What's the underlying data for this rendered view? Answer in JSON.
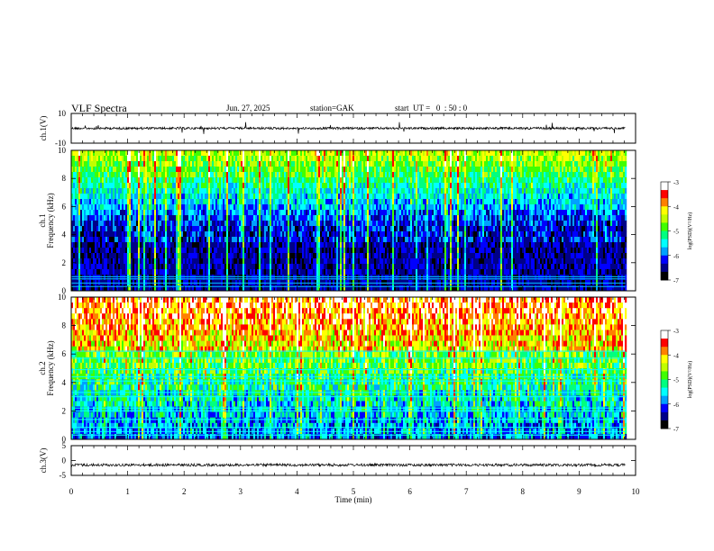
{
  "header": {
    "title": "VLF Spectra",
    "date": "Jun. 27, 2025",
    "station": "station=GAK",
    "start": "start  UT =   0  : 50 : 0"
  },
  "chart_data": [
    {
      "type": "line",
      "panel": "ch1-waveform",
      "ylabel": "ch.1(V)",
      "ylim": [
        -10,
        10
      ],
      "yticks": [
        "10",
        "-10"
      ],
      "baseline": 0,
      "color": "#000000"
    },
    {
      "type": "heatmap",
      "panel": "ch1-spectrogram",
      "ylabel": "ch.1 Frequency (kHz)",
      "ylim": [
        0,
        10
      ],
      "yticks": [
        "0",
        "2",
        "4",
        "6",
        "8",
        "10"
      ],
      "colorbar": {
        "label": "log(PSD)(V²/Hz)",
        "range": [
          -7,
          -3
        ],
        "ticks": [
          "-3",
          "-4",
          "-5",
          "-6",
          "-7"
        ]
      }
    },
    {
      "type": "heatmap",
      "panel": "ch2-spectrogram",
      "ylabel": "ch.2 Frequency (kHz)",
      "ylim": [
        0,
        10
      ],
      "yticks": [
        "0",
        "2",
        "4",
        "6",
        "8",
        "10"
      ],
      "colorbar": {
        "label": "log(PSD)(V²/Hz)",
        "range": [
          -7,
          -3
        ],
        "ticks": [
          "-3",
          "-4",
          "-5",
          "-6",
          "-7"
        ]
      }
    },
    {
      "type": "line",
      "panel": "ch3-waveform",
      "ylabel": "ch.3(V)",
      "ylim": [
        -5,
        5
      ],
      "yticks": [
        "5",
        "0",
        "-5"
      ],
      "baseline": -1.5,
      "color": "#000000"
    }
  ],
  "xaxis": {
    "label": "Time  (min)",
    "xlim": [
      0,
      10
    ],
    "ticks": [
      "0",
      "1",
      "2",
      "3",
      "4",
      "5",
      "6",
      "7",
      "8",
      "9",
      "10"
    ]
  },
  "colors": {
    "colormap": [
      "#000000",
      "#000088",
      "#0000ff",
      "#00a0ff",
      "#00ffff",
      "#00ff80",
      "#40ff00",
      "#c0ff00",
      "#ffff00",
      "#ff8000",
      "#ff0000",
      "#ffffff"
    ]
  }
}
